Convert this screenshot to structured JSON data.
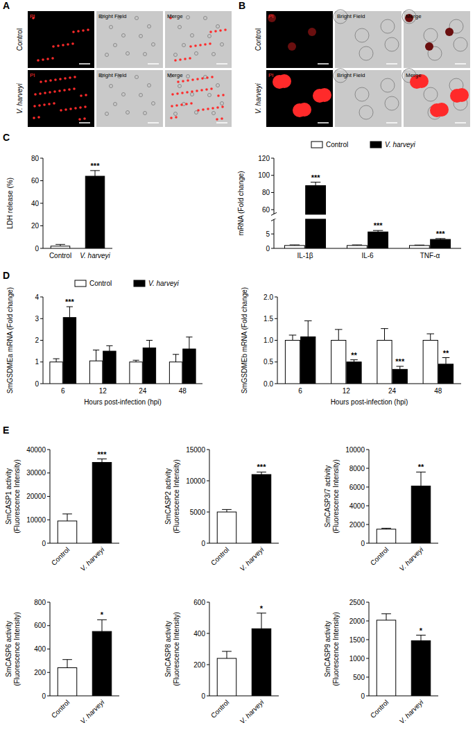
{
  "panel_letters": [
    "A",
    "B",
    "C",
    "D",
    "E"
  ],
  "micrographs": [
    {
      "columns": [
        "PI",
        "Bright Field",
        "Merge"
      ],
      "rows": [
        "Control",
        "V. harveyi"
      ]
    },
    {
      "columns": [
        "PI",
        "Bright Field",
        "Merge"
      ],
      "rows": [
        "Control",
        "V. harveyi"
      ]
    }
  ],
  "chart_data": [
    {
      "type": "bar",
      "y_label": [
        "LDH release (%)"
      ],
      "categories": [
        "Control",
        "V. harveyi"
      ],
      "values": [
        2,
        64
      ],
      "errors": [
        1.5,
        5
      ],
      "significance": [
        null,
        "***"
      ],
      "colors": [
        "#ffffff",
        "#000000"
      ],
      "ylim": [
        0,
        80
      ],
      "yticks": [
        0,
        20,
        40,
        60,
        80
      ]
    },
    {
      "type": "bar",
      "y_label": [
        "mRNA (Fold change)"
      ],
      "categories": [
        "IL-1β",
        "IL-6",
        "TNF-α"
      ],
      "series": [
        {
          "name": "Control",
          "color": "#ffffff",
          "values": [
            1,
            1,
            1
          ],
          "errors": [
            0.2,
            0.2,
            0.15
          ],
          "significance": [
            null,
            null,
            null
          ]
        },
        {
          "name": "V. harveyi",
          "color": "#000000",
          "values": [
            88,
            5.7,
            3.1
          ],
          "errors": [
            4,
            0.5,
            0.3
          ],
          "significance": [
            "***",
            "***",
            "***"
          ]
        }
      ],
      "ylim": [
        0,
        120
      ],
      "ybreak": [
        10,
        55
      ],
      "yticks": [
        0,
        5,
        60,
        80,
        100,
        120
      ],
      "legend": "top"
    },
    {
      "type": "bar",
      "y_label": [
        "SmGSDMEa mRNA (Fold change)"
      ],
      "x_label": "Hours post-infection (hpi)",
      "categories": [
        "6",
        "12",
        "24",
        "48"
      ],
      "series": [
        {
          "name": "Control",
          "color": "#ffffff",
          "values": [
            1.0,
            1.05,
            1.0,
            1.0
          ],
          "errors": [
            0.15,
            0.5,
            0.08,
            0.35
          ],
          "significance": [
            null,
            null,
            null,
            null
          ]
        },
        {
          "name": "V. harveyi",
          "color": "#000000",
          "values": [
            3.05,
            1.5,
            1.65,
            1.6
          ],
          "errors": [
            0.5,
            0.25,
            0.35,
            0.55
          ],
          "significance": [
            "***",
            null,
            null,
            null
          ]
        }
      ],
      "ylim": [
        0,
        4
      ],
      "yticks": [
        0,
        1,
        2,
        3,
        4
      ],
      "legend": "top"
    },
    {
      "type": "bar",
      "y_label": [
        "SmGSDMEb mRNA (Fold change)"
      ],
      "x_label": "Hours post-infection (hpi)",
      "categories": [
        "6",
        "12",
        "24",
        "48"
      ],
      "series": [
        {
          "name": "Control",
          "color": "#ffffff",
          "values": [
            1.0,
            1.0,
            1.0,
            1.0
          ],
          "errors": [
            0.12,
            0.25,
            0.27,
            0.15
          ],
          "significance": [
            null,
            null,
            null,
            null
          ]
        },
        {
          "name": "V. harveyi",
          "color": "#000000",
          "values": [
            1.08,
            0.5,
            0.33,
            0.45
          ],
          "errors": [
            0.37,
            0.05,
            0.07,
            0.15
          ],
          "significance": [
            null,
            "**",
            "***",
            "**"
          ]
        }
      ],
      "ylim": [
        0,
        2
      ],
      "yticks": [
        {
          "value": 0,
          "label": "0.0"
        },
        {
          "value": 0.5,
          "label": "0.5"
        },
        {
          "value": 1,
          "label": "1.0"
        },
        {
          "value": 1.5,
          "label": "1.5"
        },
        {
          "value": 2,
          "label": "2.0"
        }
      ]
    },
    {
      "type": "bar",
      "y_label": [
        "SmCASP1 activity",
        "(Fluorescence Intensity)"
      ],
      "categories": [
        "Control",
        "V. harveyi"
      ],
      "values": [
        9500,
        34500
      ],
      "errors": [
        3000,
        1500
      ],
      "significance": [
        null,
        "***"
      ],
      "colors": [
        "#ffffff",
        "#000000"
      ],
      "ylim": [
        0,
        40000
      ],
      "yticks": [
        0,
        10000,
        20000,
        30000,
        40000
      ]
    },
    {
      "type": "bar",
      "y_label": [
        "SmCASP2 activity",
        "(Fluorescence Intensity)"
      ],
      "categories": [
        "Control",
        "V. harveyi"
      ],
      "values": [
        5000,
        11000
      ],
      "errors": [
        400,
        400
      ],
      "significance": [
        null,
        "***"
      ],
      "colors": [
        "#ffffff",
        "#000000"
      ],
      "ylim": [
        0,
        15000
      ],
      "yticks": [
        0,
        5000,
        10000,
        15000
      ]
    },
    {
      "type": "bar",
      "y_label": [
        "SmCASP3/7 activity",
        "(Fluorescence Intensity)"
      ],
      "categories": [
        "Control",
        "V. harveyi"
      ],
      "values": [
        1500,
        6100
      ],
      "errors": [
        100,
        1500
      ],
      "significance": [
        null,
        "**"
      ],
      "colors": [
        "#ffffff",
        "#000000"
      ],
      "ylim": [
        0,
        10000
      ],
      "yticks": [
        0,
        2000,
        4000,
        6000,
        8000,
        10000
      ]
    },
    {
      "type": "bar",
      "y_label": [
        "SmCASP6 activity",
        "(Fluorescence Intensity)"
      ],
      "categories": [
        "Control",
        "V. harveyi"
      ],
      "values": [
        240,
        550
      ],
      "errors": [
        70,
        100
      ],
      "significance": [
        null,
        "*"
      ],
      "colors": [
        "#ffffff",
        "#000000"
      ],
      "ylim": [
        0,
        800
      ],
      "yticks": [
        0,
        200,
        400,
        600,
        800
      ]
    },
    {
      "type": "bar",
      "y_label": [
        "SmCASP8 activity",
        "(Fluorescence Intensity)"
      ],
      "categories": [
        "Control",
        "V. harveyi"
      ],
      "values": [
        240,
        430
      ],
      "errors": [
        45,
        100
      ],
      "significance": [
        null,
        "*"
      ],
      "colors": [
        "#ffffff",
        "#000000"
      ],
      "ylim": [
        0,
        600
      ],
      "yticks": [
        0,
        200,
        400,
        600
      ]
    },
    {
      "type": "bar",
      "y_label": [
        "SmCASP9 activity",
        "(Fluorescence Intensity)"
      ],
      "categories": [
        "Control",
        "V. harveyi"
      ],
      "values": [
        2020,
        1470
      ],
      "errors": [
        170,
        150
      ],
      "significance": [
        null,
        "*"
      ],
      "colors": [
        "#ffffff",
        "#000000"
      ],
      "ylim": [
        0,
        2500
      ],
      "yticks": [
        0,
        500,
        1000,
        1500,
        2000,
        2500
      ]
    }
  ]
}
